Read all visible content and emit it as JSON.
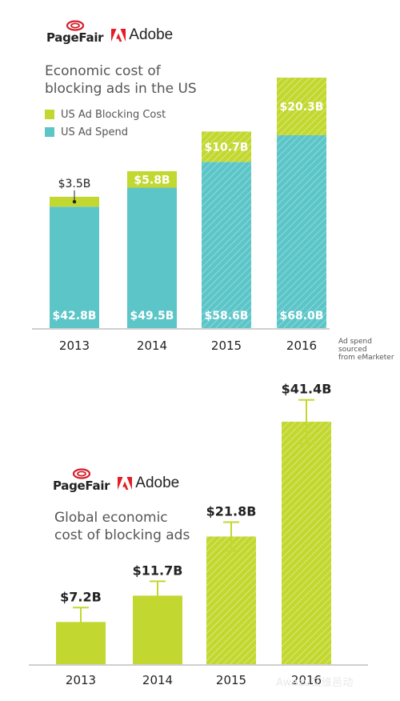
{
  "brand": {
    "pagefair": "PageFair",
    "adobe": "Adobe"
  },
  "watermark": "Awazu艾维邑动",
  "colors": {
    "us_spend": "#5cc5c8",
    "blocking_cost": "#c2d730",
    "axis": "#cfcfcf",
    "label": "#ffffff",
    "dark": "#222222"
  },
  "chart_data": [
    {
      "type": "bar",
      "stacked": true,
      "title": "Economic cost of\nblocking ads in the US",
      "categories": [
        "2013",
        "2014",
        "2015",
        "2016"
      ],
      "series": [
        {
          "name": "US Ad Spend",
          "values": [
            42.8,
            49.5,
            58.6,
            68.0
          ],
          "labels": [
            "$42.8B",
            "$49.5B",
            "$58.6B",
            "$68.0B"
          ]
        },
        {
          "name": "US Ad Blocking Cost",
          "values": [
            3.5,
            5.8,
            10.7,
            20.3
          ],
          "labels": [
            "$3.5B",
            "$5.8B",
            "$10.7B",
            "$20.3B"
          ]
        }
      ],
      "estimated_years": [
        "2015",
        "2016"
      ],
      "legend": [
        "US Ad Blocking Cost",
        "US Ad Spend"
      ],
      "legend_position": "top-left",
      "note": "Ad spend sourced\nfrom eMarketer",
      "ylim": [
        0,
        88.3
      ],
      "grid": false
    },
    {
      "type": "bar",
      "title": "Global economic\ncost of blocking ads",
      "categories": [
        "2013",
        "2014",
        "2015",
        "2016"
      ],
      "values": [
        7.2,
        11.7,
        21.8,
        41.4
      ],
      "labels": [
        "$7.2B",
        "$11.7B",
        "$21.8B",
        "$41.4B"
      ],
      "error_bars": true,
      "estimated_years": [
        "2015",
        "2016"
      ],
      "ylim": [
        0,
        47
      ],
      "grid": false
    }
  ]
}
